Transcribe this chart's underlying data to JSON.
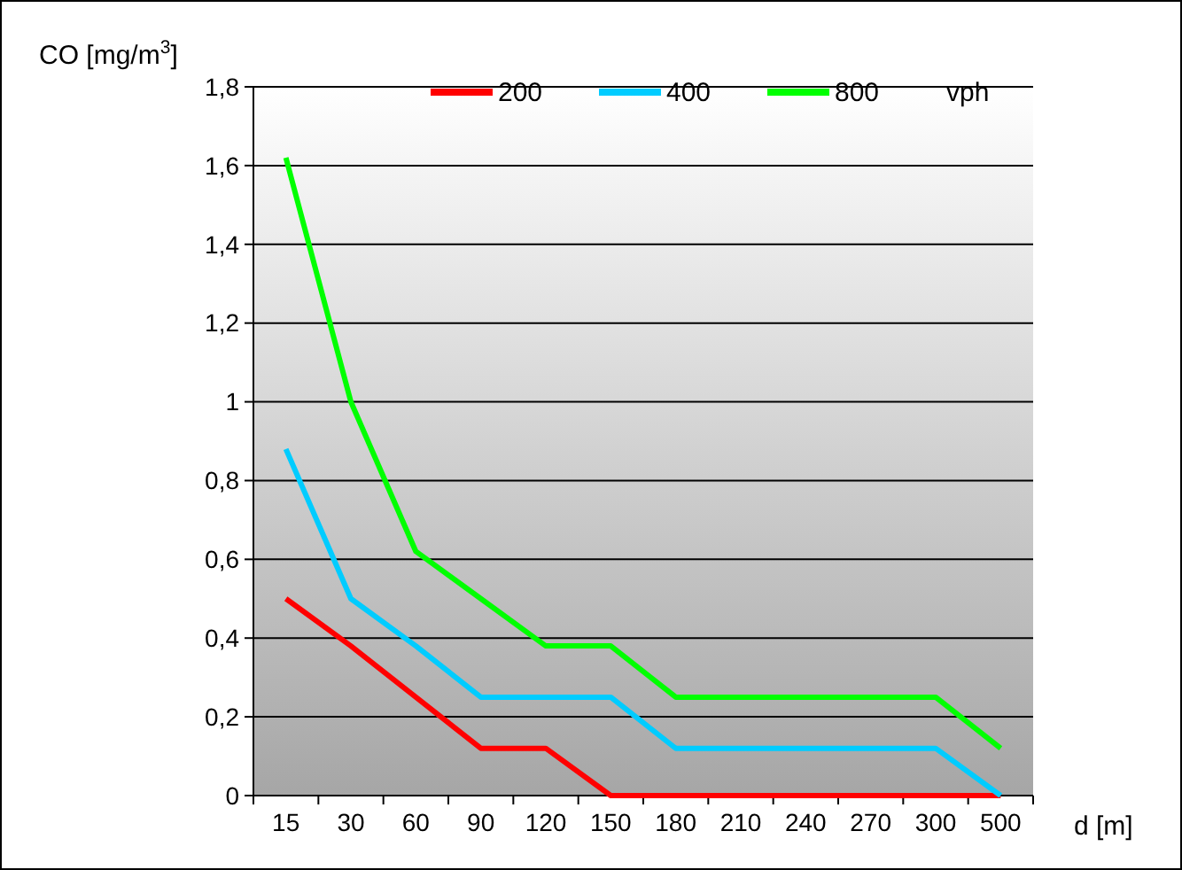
{
  "chart_data": {
    "type": "line",
    "ylabel": "CO [mg/m$^{3}$]",
    "xlabel": "d [m]",
    "legend_title": "vph",
    "legend": "top",
    "grid": "y",
    "categories": [
      "15",
      "30",
      "60",
      "90",
      "120",
      "150",
      "180",
      "210",
      "240",
      "270",
      "300",
      "500"
    ],
    "ylim": [
      0,
      1.8
    ],
    "yticks": [
      0,
      {
        "value": 0.2,
        "label": "0,2"
      },
      {
        "value": 0.4,
        "label": "0,4"
      },
      {
        "value": 0.6,
        "label": "0,6"
      },
      {
        "value": 0.8,
        "label": "0,8"
      },
      1,
      {
        "value": 1.2,
        "label": "1,2"
      },
      {
        "value": 1.4,
        "label": "1,4"
      },
      {
        "value": 1.6,
        "label": "1,6"
      },
      {
        "value": 1.8,
        "label": "1,8"
      }
    ],
    "series": [
      {
        "name": "200",
        "color": "#ff0000",
        "values": [
          0.5,
          0.38,
          0.25,
          0.12,
          0.12,
          0,
          0,
          0,
          0,
          0,
          0,
          0
        ]
      },
      {
        "name": "400",
        "color": "#00ccff",
        "values": [
          0.88,
          0.5,
          0.38,
          0.25,
          0.25,
          0.25,
          0.12,
          0.12,
          0.12,
          0.12,
          0.12,
          0
        ]
      },
      {
        "name": "800",
        "color": "#00ff00",
        "values": [
          1.62,
          1,
          0.62,
          0.5,
          0.38,
          0.38,
          0.25,
          0.25,
          0.25,
          0.25,
          0.25,
          0.12
        ]
      }
    ]
  }
}
